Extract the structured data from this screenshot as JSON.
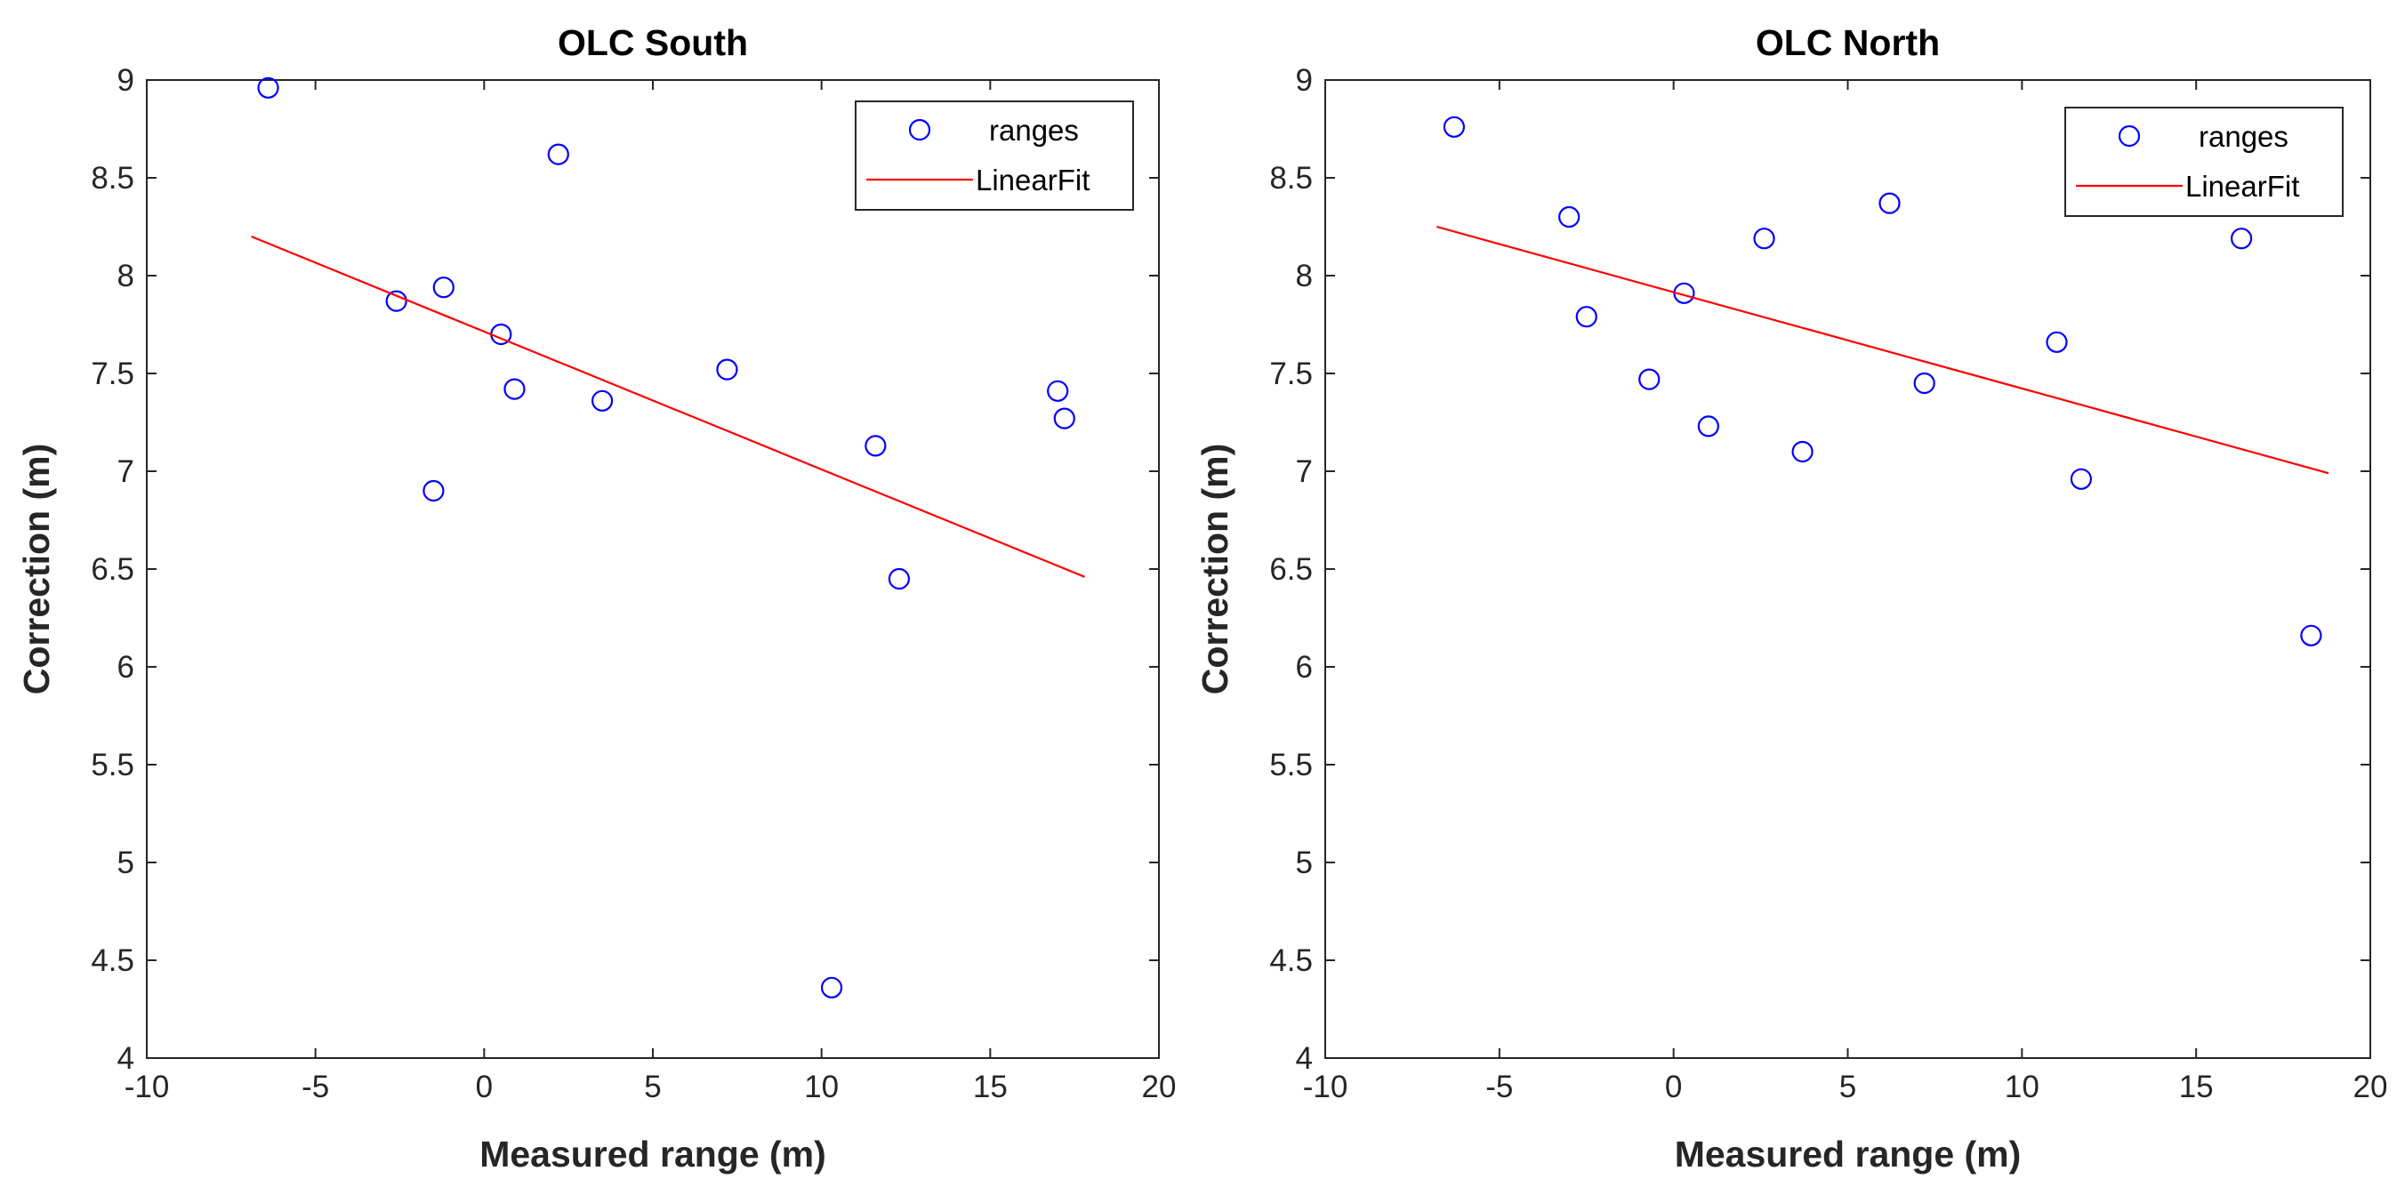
{
  "colors": {
    "marker": "#0000ff",
    "fit_line": "#ff0000",
    "axes": "#262626",
    "background": "#ffffff"
  },
  "chart_data": [
    {
      "type": "scatter",
      "title": "OLC South",
      "xlabel": "Measured range (m)",
      "ylabel": "Correction (m)",
      "xlim": [
        -10,
        20
      ],
      "ylim": [
        4,
        9
      ],
      "xticks": [
        -10,
        -5,
        0,
        5,
        10,
        15,
        20
      ],
      "yticks": [
        4,
        4.5,
        5,
        5.5,
        6,
        6.5,
        7,
        7.5,
        8,
        8.5,
        9
      ],
      "grid": false,
      "legend": {
        "position": "top-right",
        "entries": [
          "ranges",
          "LinearFit"
        ]
      },
      "series": [
        {
          "name": "ranges",
          "style": "circle-marker",
          "points": [
            [
              -6.4,
              8.96
            ],
            [
              -2.6,
              7.87
            ],
            [
              -1.2,
              7.94
            ],
            [
              -1.5,
              6.9
            ],
            [
              0.5,
              7.7
            ],
            [
              0.9,
              7.42
            ],
            [
              2.2,
              8.62
            ],
            [
              3.5,
              7.36
            ],
            [
              7.2,
              7.52
            ],
            [
              10.3,
              4.36
            ],
            [
              11.6,
              7.13
            ],
            [
              12.3,
              6.45
            ],
            [
              17.0,
              7.41
            ],
            [
              17.2,
              7.27
            ]
          ]
        },
        {
          "name": "LinearFit",
          "style": "line",
          "points": [
            [
              -6.9,
              8.2
            ],
            [
              17.8,
              6.46
            ]
          ]
        }
      ]
    },
    {
      "type": "scatter",
      "title": "OLC North",
      "xlabel": "Measured range (m)",
      "ylabel": "Correction (m)",
      "xlim": [
        -10,
        20
      ],
      "ylim": [
        4,
        9
      ],
      "xticks": [
        -10,
        -5,
        0,
        5,
        10,
        15,
        20
      ],
      "yticks": [
        4,
        4.5,
        5,
        5.5,
        6,
        6.5,
        7,
        7.5,
        8,
        8.5,
        9
      ],
      "grid": false,
      "legend": {
        "position": "top-right",
        "entries": [
          "ranges",
          "LinearFit"
        ]
      },
      "series": [
        {
          "name": "ranges",
          "style": "circle-marker",
          "points": [
            [
              -6.3,
              8.76
            ],
            [
              -3.0,
              8.3
            ],
            [
              -2.5,
              7.79
            ],
            [
              -0.7,
              7.47
            ],
            [
              0.3,
              7.91
            ],
            [
              1.0,
              7.23
            ],
            [
              2.6,
              8.19
            ],
            [
              3.7,
              7.1
            ],
            [
              6.2,
              8.37
            ],
            [
              7.2,
              7.45
            ],
            [
              11.0,
              7.66
            ],
            [
              11.7,
              6.96
            ],
            [
              16.3,
              8.19
            ],
            [
              18.3,
              6.16
            ]
          ]
        },
        {
          "name": "LinearFit",
          "style": "line",
          "points": [
            [
              -6.8,
              8.25
            ],
            [
              18.8,
              6.99
            ]
          ]
        }
      ]
    }
  ]
}
